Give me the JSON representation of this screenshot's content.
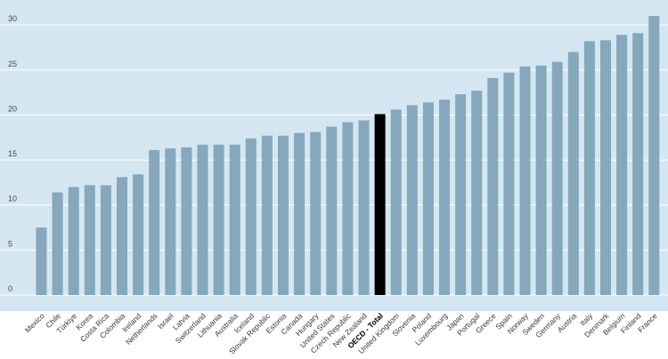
{
  "chart_data": {
    "type": "bar",
    "title": "",
    "xlabel": "",
    "ylabel": "",
    "ylim": [
      0,
      31
    ],
    "yticks": [
      0,
      5,
      10,
      15,
      20,
      25,
      30
    ],
    "grid": true,
    "highlight": "OECD - Total",
    "colors": {
      "plot_bg": "#d4e6f1",
      "grid": "#ffffff",
      "bar": "#86a7bc",
      "highlight_bar": "#000000"
    },
    "categories": [
      "Mexico",
      "Chile",
      "Türkiye",
      "Korea",
      "Costa Rica",
      "Colombia",
      "Ireland",
      "Netherlands",
      "Israel",
      "Latvia",
      "Switzerland",
      "Lithuania",
      "Australia",
      "Iceland",
      "Slovak Republic",
      "Estonia",
      "Canada",
      "Hungary",
      "United States",
      "Czech Republic",
      "New Zealand",
      "OECD - Total",
      "United Kingdom",
      "Slovenia",
      "Poland",
      "Luxembourg",
      "Japan",
      "Portugal",
      "Greece",
      "Spain",
      "Norway",
      "Sweden",
      "Germany",
      "Austria",
      "Italy",
      "Denmark",
      "Belgium",
      "Finland",
      "France"
    ],
    "values": [
      7.5,
      11.4,
      12.0,
      12.2,
      12.2,
      13.1,
      13.4,
      16.1,
      16.3,
      16.4,
      16.7,
      16.7,
      16.7,
      17.4,
      17.7,
      17.7,
      18.0,
      18.1,
      18.7,
      19.2,
      19.4,
      20.1,
      20.6,
      21.1,
      21.4,
      21.7,
      22.3,
      22.7,
      24.1,
      24.7,
      25.4,
      25.5,
      25.9,
      27.0,
      28.2,
      28.3,
      28.9,
      29.1,
      31.0
    ]
  }
}
